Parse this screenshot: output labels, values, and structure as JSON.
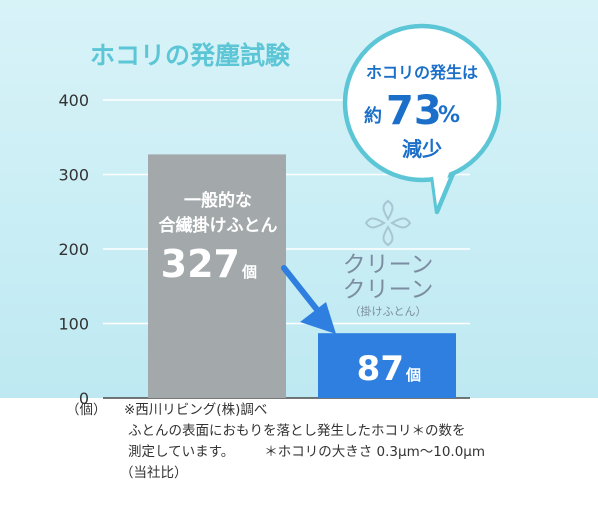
{
  "chart_data": {
    "type": "bar",
    "title": "ホコリの発塵試験",
    "unit": "（個）",
    "ylim": [
      0,
      400
    ],
    "yticks": [
      0,
      100,
      200,
      300,
      400
    ],
    "bars": [
      {
        "label_line1": "一般的な",
        "label_line2": "合繊掛けふとん",
        "value": 327,
        "value_text": "327",
        "suffix": "個",
        "color": "#a3a9ab"
      },
      {
        "value": 87,
        "value_text": "87",
        "suffix": "個",
        "color": "#2e7fe0"
      }
    ],
    "callout": {
      "line1": "ホコリの発生は",
      "prefix": "約",
      "number": "73",
      "percent": "%",
      "line3": "減少"
    },
    "brand": {
      "line1": "クリーン",
      "line2": "クリーン",
      "sub": "（掛けふとん）"
    }
  },
  "footnote": {
    "source": "※西川リビング(株)調べ",
    "line2": "ふとんの表面におもりを落とし発生したホコリ＊の数を",
    "line3a": "測定しています。",
    "line3b": "＊ホコリの大きさ 0.3μm〜10.0μm",
    "line4": "（当社比）"
  },
  "colors": {
    "background": "#c6edf5",
    "title": "#5cc6d6",
    "arrow": "#2e7fe0",
    "brand": "#7c8da2",
    "gridline": "#ffffff"
  }
}
